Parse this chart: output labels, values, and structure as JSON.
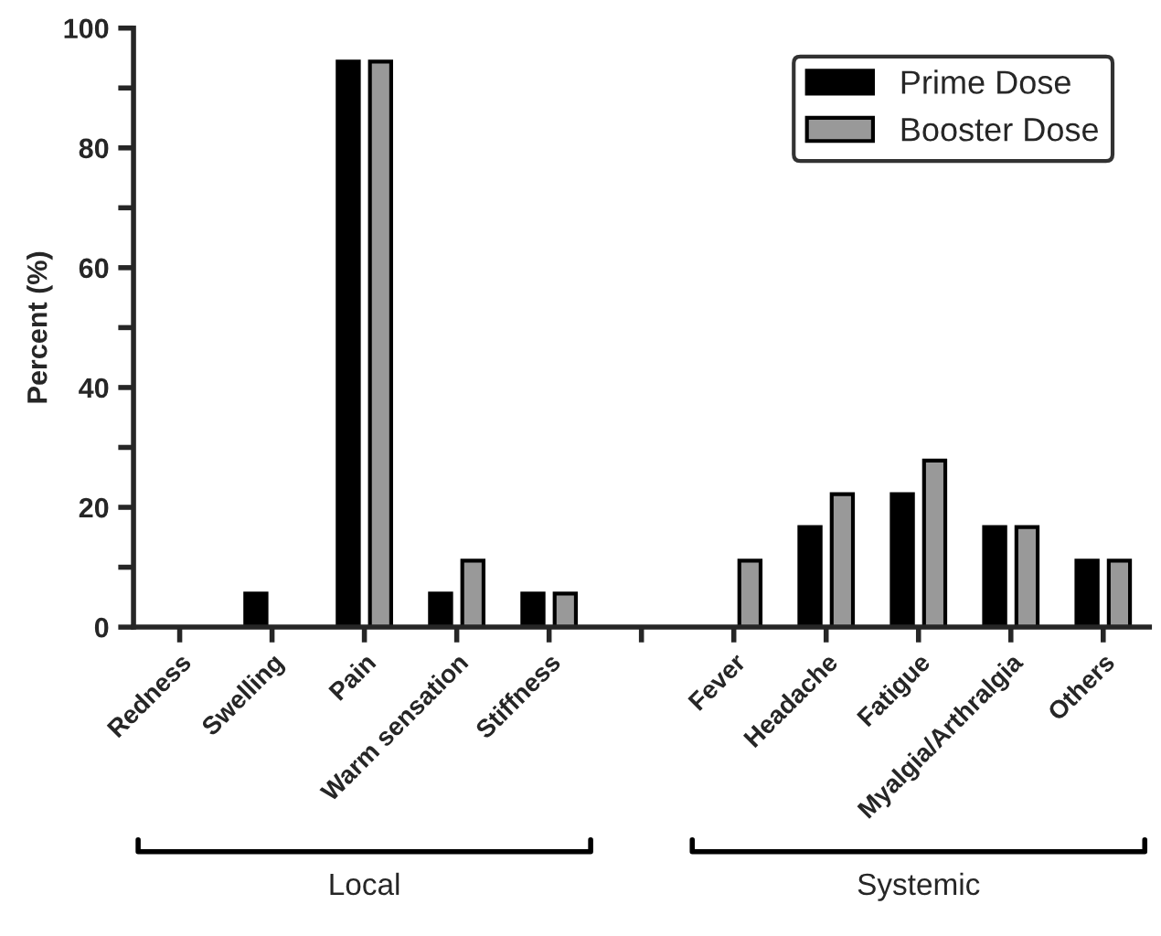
{
  "chart_data": {
    "type": "bar",
    "ylabel": "Percent (%)",
    "categories": [
      "Redness",
      "Swelling",
      "Pain",
      "Warm sensation",
      "Stiffness",
      null,
      "Fever",
      "Headache",
      "Fatigue",
      "Myalgia/Arthralgia",
      "Others"
    ],
    "series": [
      {
        "name": "Prime Dose",
        "color": "#000000",
        "values": [
          0,
          5.6,
          94.4,
          5.6,
          5.6,
          null,
          0,
          16.7,
          22.2,
          16.7,
          11.1
        ]
      },
      {
        "name": "Booster Dose",
        "color": "#999999",
        "values": [
          0,
          0,
          94.4,
          11.1,
          5.6,
          null,
          11.1,
          22.2,
          27.8,
          16.7,
          11.1
        ]
      }
    ],
    "ylim": [
      0,
      100
    ],
    "yticks": [
      0,
      {
        "value": 10,
        "label": null
      },
      20,
      {
        "value": 30,
        "label": null
      },
      40,
      {
        "value": 50,
        "label": null
      },
      60,
      {
        "value": 70,
        "label": null
      },
      80,
      {
        "value": 90,
        "label": null
      },
      100
    ],
    "annotations": [
      "Local",
      "Systemic"
    ],
    "grid": false,
    "legend": "top right"
  }
}
